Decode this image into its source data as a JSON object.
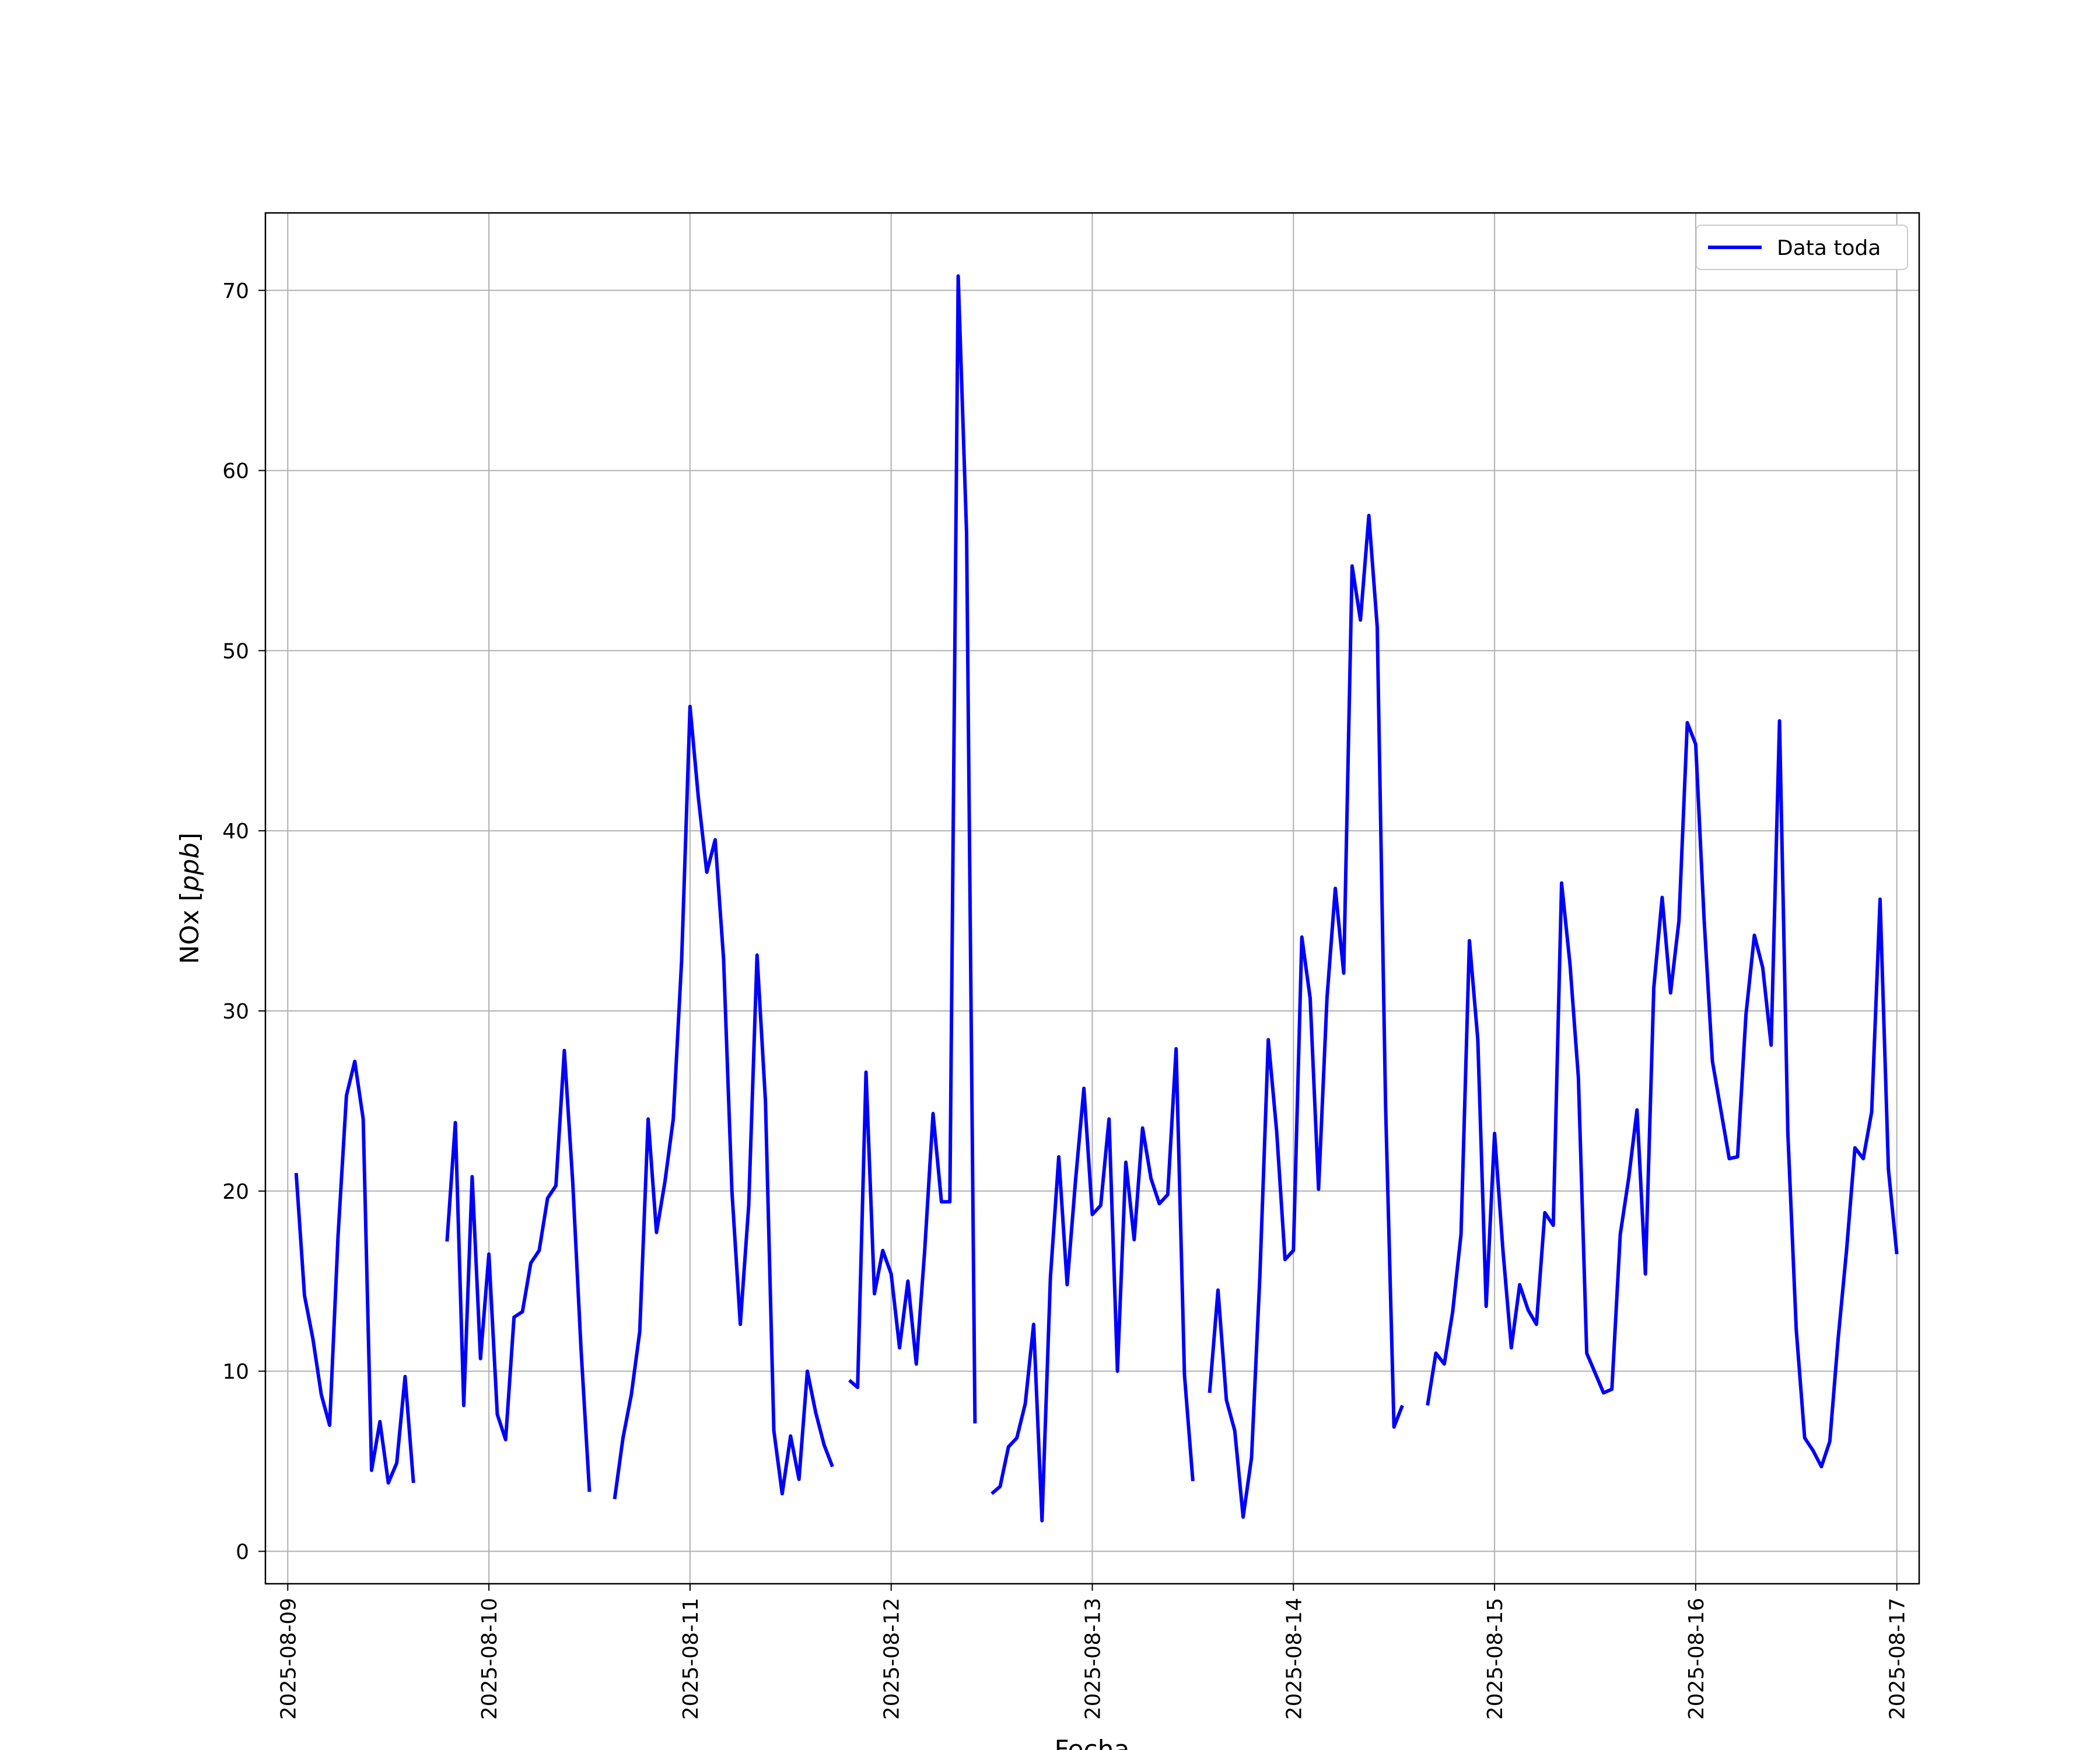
{
  "chart_data": {
    "type": "line",
    "xlabel": "Fecha",
    "ylabel": "NOx [ppb]",
    "ylabel_main": "NOx [",
    "ylabel_unit": "ppb",
    "ylabel_close": "]",
    "x_type": "datetime",
    "xlim": [
      "2025-08-08T21:20",
      "2025-08-17T02:40"
    ],
    "ylim": [
      -1.8,
      74.3
    ],
    "x_ticks": [
      "2025-08-09",
      "2025-08-10",
      "2025-08-11",
      "2025-08-12",
      "2025-08-13",
      "2025-08-14",
      "2025-08-15",
      "2025-08-16",
      "2025-08-17"
    ],
    "y_ticks": [
      0,
      10,
      20,
      30,
      40,
      50,
      60,
      70
    ],
    "grid": true,
    "legend": {
      "position": "top-right",
      "entries": [
        "Data toda"
      ]
    },
    "series": [
      {
        "name": "Data toda",
        "color": "#0000ff",
        "points": [
          [
            "2025-08-09T01:00",
            21.0
          ],
          [
            "2025-08-09T02:00",
            14.2
          ],
          [
            "2025-08-09T03:00",
            11.8
          ],
          [
            "2025-08-09T04:00",
            8.7
          ],
          [
            "2025-08-09T05:00",
            7.0
          ],
          [
            "2025-08-09T06:00",
            17.5
          ],
          [
            "2025-08-09T07:00",
            25.3
          ],
          [
            "2025-08-09T08:00",
            27.2
          ],
          [
            "2025-08-09T09:00",
            24.0
          ],
          [
            "2025-08-09T10:00",
            4.5
          ],
          [
            "2025-08-09T11:00",
            7.2
          ],
          [
            "2025-08-09T12:00",
            3.8
          ],
          [
            "2025-08-09T13:00",
            4.9
          ],
          [
            "2025-08-09T14:00",
            9.7
          ],
          [
            "2025-08-09T15:00",
            3.8
          ],
          [
            "2025-08-09T16:00",
            null
          ],
          [
            "2025-08-09T19:00",
            17.2
          ],
          [
            "2025-08-09T20:00",
            23.8
          ],
          [
            "2025-08-09T21:00",
            8.1
          ],
          [
            "2025-08-09T22:00",
            20.8
          ],
          [
            "2025-08-09T23:00",
            10.7
          ],
          [
            "2025-08-10T00:00",
            16.5
          ],
          [
            "2025-08-10T01:00",
            7.6
          ],
          [
            "2025-08-10T02:00",
            6.2
          ],
          [
            "2025-08-10T03:00",
            13.0
          ],
          [
            "2025-08-10T04:00",
            13.3
          ],
          [
            "2025-08-10T05:00",
            16.0
          ],
          [
            "2025-08-10T06:00",
            16.7
          ],
          [
            "2025-08-10T07:00",
            19.6
          ],
          [
            "2025-08-10T08:00",
            20.3
          ],
          [
            "2025-08-10T09:00",
            27.8
          ],
          [
            "2025-08-10T10:00",
            20.5
          ],
          [
            "2025-08-10T11:00",
            11.2
          ],
          [
            "2025-08-10T12:00",
            3.3
          ],
          [
            "2025-08-10T13:00",
            null
          ],
          [
            "2025-08-10T15:00",
            2.9
          ],
          [
            "2025-08-10T16:00",
            6.3
          ],
          [
            "2025-08-10T17:00",
            8.7
          ],
          [
            "2025-08-10T18:00",
            12.2
          ],
          [
            "2025-08-10T19:00",
            24.0
          ],
          [
            "2025-08-10T20:00",
            17.7
          ],
          [
            "2025-08-10T21:00",
            20.5
          ],
          [
            "2025-08-10T22:00",
            24.0
          ],
          [
            "2025-08-10T23:00",
            32.8
          ],
          [
            "2025-08-11T00:00",
            46.9
          ],
          [
            "2025-08-11T01:00",
            41.8
          ],
          [
            "2025-08-11T02:00",
            37.7
          ],
          [
            "2025-08-11T03:00",
            39.5
          ],
          [
            "2025-08-11T04:00",
            32.9
          ],
          [
            "2025-08-11T05:00",
            20.0
          ],
          [
            "2025-08-11T06:00",
            12.6
          ],
          [
            "2025-08-11T07:00",
            19.2
          ],
          [
            "2025-08-11T08:00",
            33.1
          ],
          [
            "2025-08-11T09:00",
            25.0
          ],
          [
            "2025-08-11T10:00",
            6.7
          ],
          [
            "2025-08-11T11:00",
            3.2
          ],
          [
            "2025-08-11T12:00",
            6.4
          ],
          [
            "2025-08-11T13:00",
            4.0
          ],
          [
            "2025-08-11T14:00",
            10.0
          ],
          [
            "2025-08-11T15:00",
            7.7
          ],
          [
            "2025-08-11T16:00",
            5.9
          ],
          [
            "2025-08-11T17:00",
            4.7
          ],
          [
            "2025-08-11T18:00",
            null
          ],
          [
            "2025-08-11T19:00",
            9.5
          ],
          [
            "2025-08-11T20:00",
            9.1
          ],
          [
            "2025-08-11T21:00",
            26.6
          ],
          [
            "2025-08-11T22:00",
            14.3
          ],
          [
            "2025-08-11T23:00",
            16.7
          ],
          [
            "2025-08-12T00:00",
            15.4
          ],
          [
            "2025-08-12T01:00",
            11.3
          ],
          [
            "2025-08-12T02:00",
            15.0
          ],
          [
            "2025-08-12T03:00",
            10.4
          ],
          [
            "2025-08-12T04:00",
            16.7
          ],
          [
            "2025-08-12T05:00",
            24.3
          ],
          [
            "2025-08-12T06:00",
            19.4
          ],
          [
            "2025-08-12T07:00",
            19.4
          ],
          [
            "2025-08-12T08:00",
            70.8
          ],
          [
            "2025-08-12T09:00",
            56.5
          ],
          [
            "2025-08-12T10:00",
            7.1
          ],
          [
            "2025-08-12T11:00",
            null
          ],
          [
            "2025-08-12T12:00",
            3.2
          ],
          [
            "2025-08-12T13:00",
            3.6
          ],
          [
            "2025-08-12T14:00",
            5.8
          ],
          [
            "2025-08-12T15:00",
            6.3
          ],
          [
            "2025-08-12T16:00",
            8.2
          ],
          [
            "2025-08-12T17:00",
            12.6
          ],
          [
            "2025-08-12T18:00",
            1.7
          ],
          [
            "2025-08-12T19:00",
            15.2
          ],
          [
            "2025-08-12T20:00",
            21.9
          ],
          [
            "2025-08-12T21:00",
            14.8
          ],
          [
            "2025-08-12T22:00",
            20.6
          ],
          [
            "2025-08-12T23:00",
            25.7
          ],
          [
            "2025-08-13T00:00",
            18.7
          ],
          [
            "2025-08-13T01:00",
            19.2
          ],
          [
            "2025-08-13T02:00",
            24.0
          ],
          [
            "2025-08-13T03:00",
            10.0
          ],
          [
            "2025-08-13T04:00",
            21.6
          ],
          [
            "2025-08-13T05:00",
            17.3
          ],
          [
            "2025-08-13T06:00",
            23.5
          ],
          [
            "2025-08-13T07:00",
            20.7
          ],
          [
            "2025-08-13T08:00",
            19.3
          ],
          [
            "2025-08-13T09:00",
            19.8
          ],
          [
            "2025-08-13T10:00",
            27.9
          ],
          [
            "2025-08-13T11:00",
            9.8
          ],
          [
            "2025-08-13T12:00",
            3.9
          ],
          [
            "2025-08-13T13:00",
            null
          ],
          [
            "2025-08-13T14:00",
            8.8
          ],
          [
            "2025-08-13T15:00",
            14.5
          ],
          [
            "2025-08-13T16:00",
            8.4
          ],
          [
            "2025-08-13T17:00",
            6.7
          ],
          [
            "2025-08-13T18:00",
            1.9
          ],
          [
            "2025-08-13T19:00",
            5.2
          ],
          [
            "2025-08-13T20:00",
            15.3
          ],
          [
            "2025-08-13T21:00",
            28.4
          ],
          [
            "2025-08-13T22:00",
            23.3
          ],
          [
            "2025-08-13T23:00",
            16.2
          ],
          [
            "2025-08-14T00:00",
            16.7
          ],
          [
            "2025-08-14T01:00",
            34.1
          ],
          [
            "2025-08-14T02:00",
            30.7
          ],
          [
            "2025-08-14T03:00",
            20.1
          ],
          [
            "2025-08-14T04:00",
            30.7
          ],
          [
            "2025-08-14T05:00",
            36.8
          ],
          [
            "2025-08-14T06:00",
            32.1
          ],
          [
            "2025-08-14T07:00",
            54.7
          ],
          [
            "2025-08-14T08:00",
            51.7
          ],
          [
            "2025-08-14T09:00",
            57.5
          ],
          [
            "2025-08-14T10:00",
            51.3
          ],
          [
            "2025-08-14T11:00",
            24.7
          ],
          [
            "2025-08-14T12:00",
            6.9
          ],
          [
            "2025-08-14T13:00",
            8.1
          ],
          [
            "2025-08-14T14:00",
            null
          ],
          [
            "2025-08-14T16:00",
            8.1
          ],
          [
            "2025-08-14T17:00",
            11.0
          ],
          [
            "2025-08-14T18:00",
            10.4
          ],
          [
            "2025-08-14T19:00",
            13.3
          ],
          [
            "2025-08-14T20:00",
            17.6
          ],
          [
            "2025-08-14T21:00",
            33.9
          ],
          [
            "2025-08-14T22:00",
            28.4
          ],
          [
            "2025-08-14T23:00",
            13.6
          ],
          [
            "2025-08-15T00:00",
            23.2
          ],
          [
            "2025-08-15T01:00",
            16.7
          ],
          [
            "2025-08-15T02:00",
            11.3
          ],
          [
            "2025-08-15T03:00",
            14.8
          ],
          [
            "2025-08-15T04:00",
            13.4
          ],
          [
            "2025-08-15T05:00",
            12.6
          ],
          [
            "2025-08-15T06:00",
            18.8
          ],
          [
            "2025-08-15T07:00",
            18.1
          ],
          [
            "2025-08-15T08:00",
            37.1
          ],
          [
            "2025-08-15T09:00",
            32.6
          ],
          [
            "2025-08-15T10:00",
            26.3
          ],
          [
            "2025-08-15T11:00",
            11.0
          ],
          [
            "2025-08-15T12:00",
            9.9
          ],
          [
            "2025-08-15T13:00",
            8.8
          ],
          [
            "2025-08-15T14:00",
            9.0
          ],
          [
            "2025-08-15T15:00",
            17.6
          ],
          [
            "2025-08-15T16:00",
            20.7
          ],
          [
            "2025-08-15T17:00",
            24.5
          ],
          [
            "2025-08-15T18:00",
            15.4
          ],
          [
            "2025-08-15T19:00",
            31.3
          ],
          [
            "2025-08-15T20:00",
            36.3
          ],
          [
            "2025-08-15T21:00",
            31.0
          ],
          [
            "2025-08-15T22:00",
            35.0
          ],
          [
            "2025-08-15T23:00",
            46.0
          ],
          [
            "2025-08-16T00:00",
            44.8
          ],
          [
            "2025-08-16T01:00",
            35.1
          ],
          [
            "2025-08-16T02:00",
            27.2
          ],
          [
            "2025-08-16T03:00",
            24.5
          ],
          [
            "2025-08-16T04:00",
            21.8
          ],
          [
            "2025-08-16T05:00",
            21.9
          ],
          [
            "2025-08-16T06:00",
            29.8
          ],
          [
            "2025-08-16T07:00",
            34.2
          ],
          [
            "2025-08-16T08:00",
            32.4
          ],
          [
            "2025-08-16T09:00",
            28.1
          ],
          [
            "2025-08-16T10:00",
            46.1
          ],
          [
            "2025-08-16T11:00",
            23.2
          ],
          [
            "2025-08-16T12:00",
            12.3
          ],
          [
            "2025-08-16T13:00",
            6.3
          ],
          [
            "2025-08-16T14:00",
            5.6
          ],
          [
            "2025-08-16T15:00",
            4.7
          ],
          [
            "2025-08-16T16:00",
            6.1
          ],
          [
            "2025-08-16T17:00",
            11.8
          ],
          [
            "2025-08-16T18:00",
            16.7
          ],
          [
            "2025-08-16T19:00",
            22.4
          ],
          [
            "2025-08-16T20:00",
            21.8
          ],
          [
            "2025-08-16T21:00",
            24.4
          ],
          [
            "2025-08-16T22:00",
            36.2
          ],
          [
            "2025-08-16T23:00",
            21.2
          ],
          [
            "2025-08-17T00:00",
            16.5
          ]
        ]
      }
    ]
  }
}
